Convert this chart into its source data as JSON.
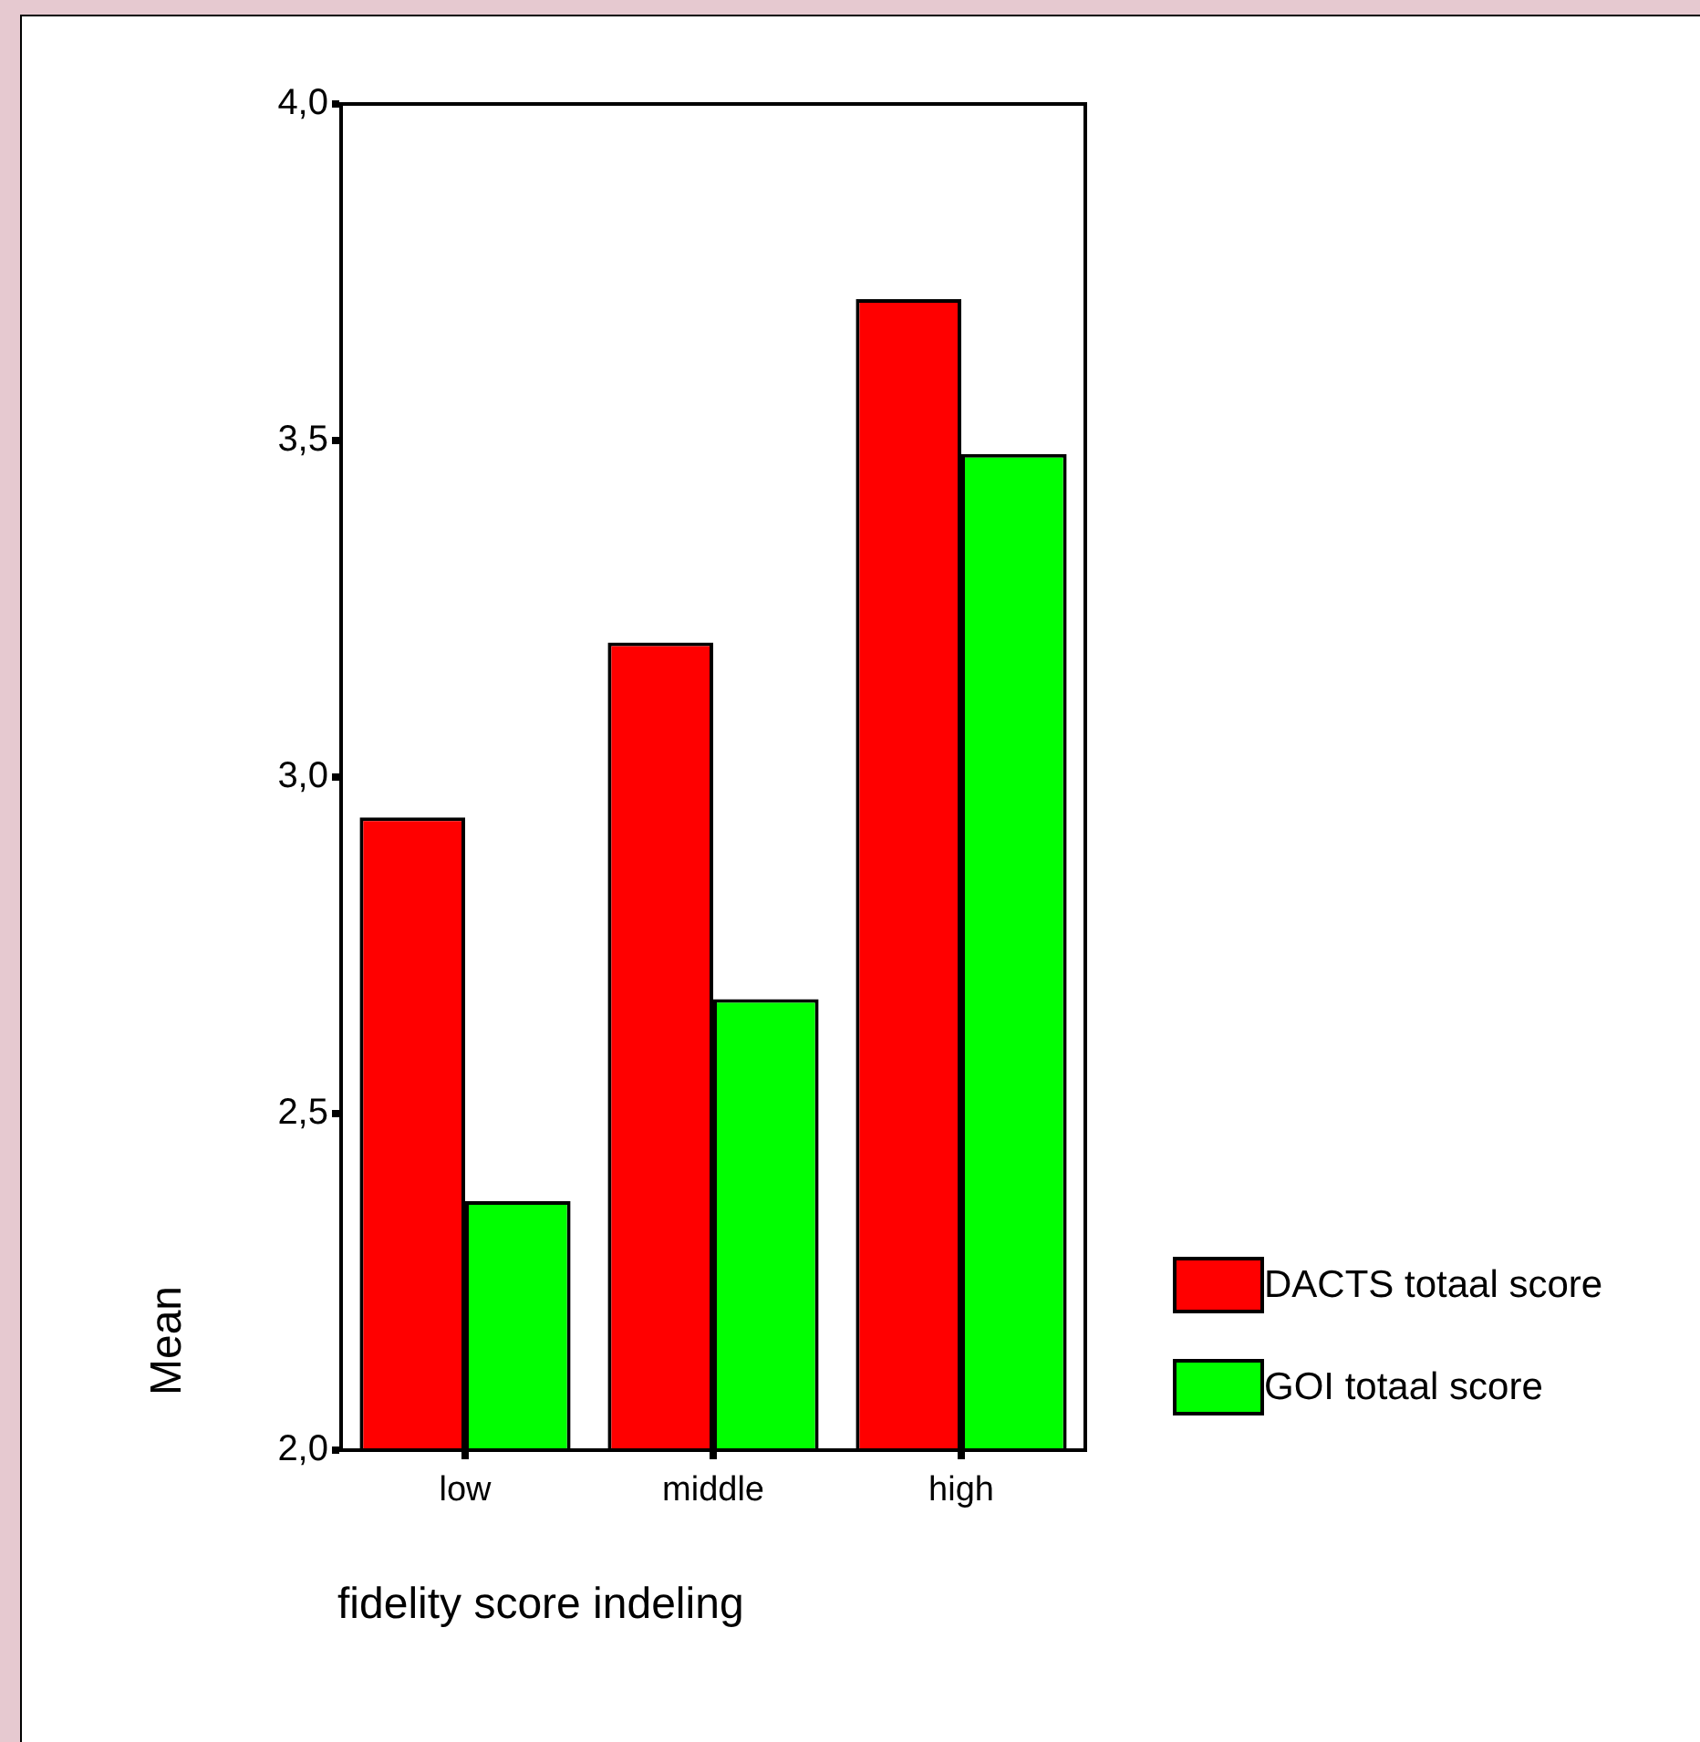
{
  "chart_data": {
    "type": "bar",
    "xlabel": "fidelity score indeling",
    "ylabel": "Mean",
    "categories": [
      "low",
      "middle",
      "high"
    ],
    "series": [
      {
        "name": "DACTS totaal score",
        "color": "#ff0000",
        "values": [
          2.94,
          3.2,
          3.71
        ]
      },
      {
        "name": "GOI totaal score",
        "color": "#00ff00",
        "values": [
          2.37,
          2.67,
          3.48
        ]
      }
    ],
    "ylim": [
      2,
      4
    ],
    "yticks": [
      {
        "value": 2,
        "label": "2,0"
      },
      {
        "value": 2.5,
        "label": "2,5"
      },
      {
        "value": 3,
        "label": "3,0"
      },
      {
        "value": 3.5,
        "label": "3,5"
      },
      {
        "value": 4,
        "label": "4,0"
      }
    ],
    "grid": false,
    "legend": "right"
  }
}
